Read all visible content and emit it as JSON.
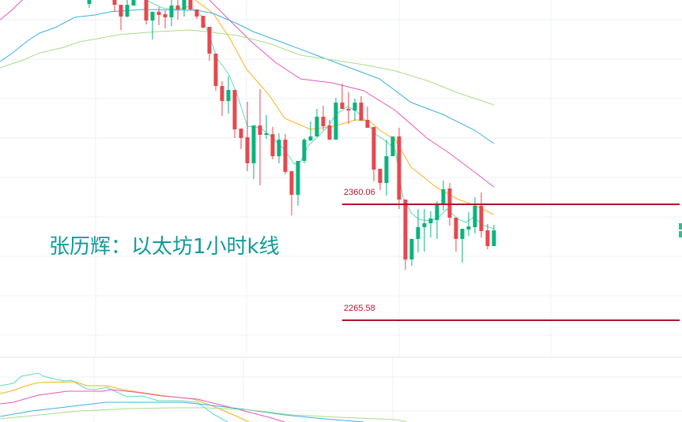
{
  "title": "张历辉：以太坊1小时k线",
  "colors": {
    "up": "#0ab37c",
    "down": "#e5484f",
    "level": "#b0122c",
    "level_label": "#b5172f",
    "grid": "#eef1f5",
    "title": "#129a9a"
  },
  "chart_data": {
    "type": "candlestick",
    "title": "张历辉：以太坊1小时k线",
    "x_unit": "bar index (1 hour each)",
    "visible_price_range": [
      2182,
      2527
    ],
    "levels": [
      {
        "name": "resistance",
        "value": 2360.06,
        "label": "2360.06"
      },
      {
        "name": "support",
        "value": 2265.58,
        "label": "2265.58"
      }
    ],
    "candles_ohlc": [
      [
        2523.3,
        2536.1,
        2520.1,
        2532.9
      ],
      null,
      null,
      null,
      [
        2529.7,
        2531.6,
        2516.9,
        2522.6
      ],
      [
        2522.6,
        2522.6,
        2502.1,
        2513.0
      ],
      [
        2513.0,
        2528.4,
        2512.4,
        2522.6
      ],
      [
        2522.0,
        2532.0,
        2522.0,
        2529.7
      ],
      null,
      [
        2528.4,
        2530.0,
        2506.6,
        2509.8
      ],
      [
        2509.8,
        2516.9,
        2494.4,
        2516.9
      ],
      [
        2516.9,
        2520.7,
        2505.9,
        2514.3
      ],
      [
        2514.9,
        2518.1,
        2503.4,
        2512.4
      ],
      [
        2512.4,
        2527.5,
        2505.3,
        2522.0
      ],
      [
        2522.0,
        2527.0,
        2510.4,
        2518.8
      ],
      [
        2518.8,
        2530.0,
        2513.0,
        2527.8
      ],
      [
        2527.8,
        2530.0,
        2518.1,
        2518.8
      ],
      [
        2518.8,
        2518.8,
        2511.1,
        2513.0
      ],
      [
        2513.6,
        2513.6,
        2503.4,
        2504.0
      ],
      [
        2504.6,
        2504.6,
        2477.0,
        2482.8
      ],
      [
        2482.8,
        2482.8,
        2452.6,
        2456.4
      ],
      [
        2456.4,
        2460.3,
        2432.0,
        2444.2
      ],
      [
        2444.2,
        2464.2,
        2433.9,
        2453.2
      ],
      [
        2453.2,
        2453.2,
        2414.0,
        2421.1
      ],
      [
        2421.7,
        2421.7,
        2405.0,
        2414.0
      ],
      [
        2414.7,
        2443.6,
        2387.0,
        2393.5
      ],
      [
        2393.5,
        2424.3,
        2380.6,
        2424.3
      ],
      [
        2424.3,
        2453.9,
        2375.5,
        2416.6
      ],
      [
        2416.6,
        2432.7,
        2413.4,
        2417.9
      ],
      [
        2417.2,
        2423.0,
        2396.7,
        2399.2
      ],
      [
        2399.2,
        2417.9,
        2393.5,
        2412.7
      ],
      [
        2412.7,
        2417.2,
        2384.5,
        2386.4
      ],
      [
        2387.0,
        2387.0,
        2351.0,
        2367.8
      ],
      [
        2367.8,
        2395.4,
        2358.8,
        2395.4
      ],
      [
        2395.4,
        2414.0,
        2393.5,
        2412.7
      ],
      [
        2412.1,
        2427.5,
        2411.5,
        2415.3
      ],
      [
        2415.3,
        2437.8,
        2415.3,
        2431.4
      ],
      [
        2431.4,
        2440.4,
        2420.5,
        2423.7
      ],
      [
        2424.3,
        2428.8,
        2412.7,
        2412.7
      ],
      [
        2412.7,
        2446.8,
        2412.7,
        2442.9
      ],
      [
        2442.9,
        2458.4,
        2437.8,
        2437.8
      ],
      [
        2437.8,
        2451.3,
        2425.6,
        2436.5
      ],
      [
        2436.5,
        2446.2,
        2428.2,
        2442.9
      ],
      [
        2442.9,
        2448.1,
        2428.2,
        2428.2
      ],
      [
        2428.8,
        2439.7,
        2422.4,
        2422.4
      ],
      [
        2423.0,
        2423.0,
        2378.7,
        2388.3
      ],
      [
        2389.0,
        2389.0,
        2371.6,
        2377.4
      ],
      [
        2377.4,
        2412.7,
        2367.1,
        2399.2
      ],
      [
        2399.2,
        2415.3,
        2399.2,
        2415.3
      ],
      [
        2415.3,
        2422.4,
        2356.2,
        2363.9
      ],
      [
        2363.9,
        2363.9,
        2306.7,
        2315.1
      ],
      [
        2315.1,
        2331.8,
        2309.9,
        2331.8
      ],
      [
        2331.8,
        2356.2,
        2320.8,
        2341.4
      ],
      [
        2341.4,
        2356.2,
        2321.5,
        2344.6
      ],
      [
        2344.6,
        2354.3,
        2333.0,
        2348.5
      ],
      [
        2347.2,
        2362.6,
        2331.8,
        2360.7
      ],
      [
        2360.0,
        2379.3,
        2354.9,
        2372.3
      ],
      [
        2372.9,
        2377.4,
        2342.7,
        2349.1
      ],
      [
        2349.1,
        2349.1,
        2321.5,
        2331.8
      ],
      [
        2331.8,
        2340.1,
        2312.5,
        2340.1
      ],
      [
        2339.5,
        2353.6,
        2334.3,
        2342.0
      ],
      [
        2341.4,
        2365.8,
        2336.3,
        2358.8
      ],
      [
        2358.8,
        2369.7,
        2333.0,
        2338.2
      ],
      [
        2338.8,
        2344.0,
        2323.4,
        2326.0
      ],
      [
        2326.0,
        2343.3,
        2326.0,
        2338.8
      ]
    ],
    "moving_averages": [
      {
        "name": "MA5",
        "color": "#5ed9c2",
        "points": [
          [
            9,
            2526.5
          ],
          [
            11.5,
            2520.1
          ],
          [
            14,
            2518.8
          ],
          [
            15.9,
            2521.4
          ],
          [
            17.75,
            2513.6
          ],
          [
            19,
            2497.6
          ],
          [
            20.25,
            2478.3
          ],
          [
            21.25,
            2471.9
          ],
          [
            22.1,
            2465.4
          ],
          [
            23.4,
            2449.4
          ],
          [
            25,
            2423.7
          ],
          [
            27.1,
            2422.4
          ],
          [
            29,
            2414.0
          ],
          [
            30.9,
            2404.4
          ],
          [
            32.4,
            2392.8
          ],
          [
            33.4,
            2394.7
          ],
          [
            34.6,
            2407.6
          ],
          [
            35.9,
            2414.0
          ],
          [
            37.8,
            2423.7
          ],
          [
            39,
            2433.3
          ],
          [
            40.9,
            2439.7
          ],
          [
            42.1,
            2436.5
          ],
          [
            43.4,
            2430.1
          ],
          [
            45.3,
            2417.2
          ],
          [
            47.1,
            2410.8
          ],
          [
            48.4,
            2404.4
          ],
          [
            49.6,
            2365.8
          ],
          [
            50.9,
            2353.0
          ],
          [
            52.1,
            2347.8
          ],
          [
            54,
            2346.5
          ],
          [
            55.3,
            2349.8
          ],
          [
            56.5,
            2356.2
          ],
          [
            58.4,
            2347.8
          ],
          [
            59.6,
            2345.3
          ],
          [
            60.9,
            2349.8
          ],
          [
            62.1,
            2343.3
          ],
          [
            64,
            2340.1
          ]
        ]
      },
      {
        "name": "MA10",
        "color": "#fbb118",
        "points": [
          [
            15.25,
            2532.9
          ],
          [
            16.75,
            2526.5
          ],
          [
            19.6,
            2515.6
          ],
          [
            22.1,
            2496.3
          ],
          [
            24.9,
            2469.9
          ],
          [
            28.4,
            2449.4
          ],
          [
            30.9,
            2430.1
          ],
          [
            35,
            2421.1
          ],
          [
            38.75,
            2423.7
          ],
          [
            42.1,
            2428.8
          ],
          [
            44.25,
            2428.2
          ],
          [
            45.9,
            2420.5
          ],
          [
            48.4,
            2412.7
          ],
          [
            50.9,
            2390.2
          ],
          [
            55,
            2373.5
          ],
          [
            58.4,
            2363.9
          ],
          [
            60.9,
            2359.4
          ],
          [
            64,
            2351.7
          ]
        ]
      },
      {
        "name": "MA20",
        "color": "#e857c0",
        "points": [
          [
            -14.1,
            2510.4
          ],
          [
            -12.3,
            2518.1
          ],
          [
            -10.6,
            2526.5
          ],
          [
            -9.8,
            2531.6
          ],
          [
            3,
            2560
          ],
          [
            18.1,
            2529.7
          ],
          [
            19,
            2526.5
          ],
          [
            22.1,
            2510.4
          ],
          [
            25.9,
            2491.2
          ],
          [
            29.6,
            2475.1
          ],
          [
            33.4,
            2462.2
          ],
          [
            38.4,
            2459.0
          ],
          [
            43.4,
            2452.6
          ],
          [
            48.4,
            2436.5
          ],
          [
            53.4,
            2414.0
          ],
          [
            57.1,
            2401.2
          ],
          [
            60.9,
            2386.4
          ],
          [
            64,
            2374.2
          ]
        ]
      },
      {
        "name": "MA30",
        "color": "#3cb0e6",
        "points": [
          [
            -14.1,
            2476.4
          ],
          [
            -12.3,
            2482.8
          ],
          [
            -9.8,
            2493.1
          ],
          [
            -7.9,
            2499.5
          ],
          [
            -5.4,
            2504.0
          ],
          [
            -2.3,
            2512.4
          ],
          [
            0.9,
            2514.3
          ],
          [
            3.4,
            2516.9
          ],
          [
            8.4,
            2518.8
          ],
          [
            17.1,
            2518.1
          ],
          [
            19.6,
            2515.6
          ],
          [
            23.4,
            2507.2
          ],
          [
            25.9,
            2500.8
          ],
          [
            30.9,
            2491.2
          ],
          [
            35.9,
            2481.5
          ],
          [
            40.9,
            2471.9
          ],
          [
            45.9,
            2462.2
          ],
          [
            50.9,
            2443.0
          ],
          [
            55.9,
            2433.3
          ],
          [
            60.9,
            2420.5
          ],
          [
            64,
            2409.5
          ]
        ]
      },
      {
        "name": "MA60",
        "color": "#a9dc8a",
        "points": [
          [
            -14.1,
            2471.2
          ],
          [
            -10.4,
            2477.7
          ],
          [
            -7.9,
            2483.4
          ],
          [
            -4.1,
            2487.9
          ],
          [
            -1.6,
            2492.4
          ],
          [
            2.1,
            2495.7
          ],
          [
            4.6,
            2498.2
          ],
          [
            10.9,
            2500.8
          ],
          [
            15.9,
            2502.1
          ],
          [
            18.4,
            2500.8
          ],
          [
            23.4,
            2497.6
          ],
          [
            28.4,
            2491.2
          ],
          [
            33.4,
            2481.5
          ],
          [
            38.4,
            2477.7
          ],
          [
            43.4,
            2473.8
          ],
          [
            48.4,
            2468.7
          ],
          [
            53.4,
            2460.9
          ],
          [
            58.4,
            2450.7
          ],
          [
            64,
            2441.0
          ]
        ]
      }
    ],
    "indicator_panel": {
      "range": [
        0,
        82
      ],
      "series": [
        {
          "name": "line1",
          "color": "#5ed9c2",
          "points": [
            [
              -14.1,
              46
            ],
            [
              -12,
              49
            ],
            [
              -10.75,
              58
            ],
            [
              -8.1,
              62
            ],
            [
              -7.25,
              58
            ],
            [
              -4.1,
              52
            ],
            [
              -2.9,
              53
            ],
            [
              -0.4,
              42
            ],
            [
              0.9,
              41
            ],
            [
              2.75,
              44
            ],
            [
              5.9,
              32
            ],
            [
              8.4,
              33
            ],
            [
              10.9,
              27
            ],
            [
              14.6,
              27
            ],
            [
              17.1,
              25
            ],
            [
              19.6,
              10
            ],
            [
              21.9,
              0
            ]
          ]
        },
        {
          "name": "line2",
          "color": "#fbb118",
          "points": [
            [
              -14.1,
              36
            ],
            [
              -12,
              40
            ],
            [
              -10.75,
              44
            ],
            [
              -8.1,
              50
            ],
            [
              -2.25,
              51
            ],
            [
              -0.4,
              46
            ],
            [
              2.75,
              46
            ],
            [
              5.25,
              41
            ],
            [
              7.75,
              38
            ],
            [
              12.1,
              33
            ],
            [
              16.5,
              29
            ],
            [
              19.6,
              20
            ],
            [
              23.4,
              7
            ],
            [
              25.25,
              0
            ]
          ]
        },
        {
          "name": "line3",
          "color": "#e857c0",
          "points": [
            [
              -14.1,
              23
            ],
            [
              -12,
              25
            ],
            [
              -8.1,
              34
            ],
            [
              -3.5,
              39
            ],
            [
              2.1,
              39
            ],
            [
              3.4,
              41
            ],
            [
              7.1,
              38
            ],
            [
              11.5,
              33
            ],
            [
              17.1,
              29
            ],
            [
              22.1,
              19
            ],
            [
              28.4,
              6
            ],
            [
              30.9,
              0
            ]
          ]
        },
        {
          "name": "line4",
          "color": "#3cb0e6",
          "points": [
            [
              -14.1,
              7
            ],
            [
              -9.1,
              14
            ],
            [
              -4.75,
              18
            ],
            [
              -1.6,
              21
            ],
            [
              2.75,
              25
            ],
            [
              14.6,
              25
            ],
            [
              18.4,
              22
            ],
            [
              24.6,
              16
            ],
            [
              30.9,
              9
            ],
            [
              37.1,
              4
            ],
            [
              43.4,
              0
            ]
          ]
        },
        {
          "name": "line5",
          "color": "#a9dc8a",
          "points": [
            [
              -14.1,
              4
            ],
            [
              -7.9,
              9
            ],
            [
              -1.6,
              14
            ],
            [
              6.5,
              17
            ],
            [
              13.4,
              18
            ],
            [
              18.4,
              18
            ],
            [
              25.9,
              15
            ],
            [
              32.1,
              9
            ],
            [
              39.6,
              6
            ],
            [
              48.4,
              3
            ],
            [
              50.25,
              0
            ]
          ]
        }
      ]
    }
  }
}
